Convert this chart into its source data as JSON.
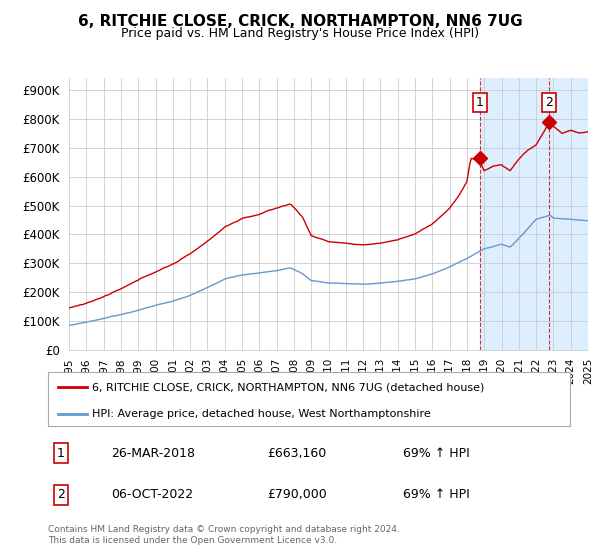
{
  "title": "6, RITCHIE CLOSE, CRICK, NORTHAMPTON, NN6 7UG",
  "subtitle": "Price paid vs. HM Land Registry's House Price Index (HPI)",
  "legend_line1": "6, RITCHIE CLOSE, CRICK, NORTHAMPTON, NN6 7UG (detached house)",
  "legend_line2": "HPI: Average price, detached house, West Northamptonshire",
  "footer": "Contains HM Land Registry data © Crown copyright and database right 2024.\nThis data is licensed under the Open Government Licence v3.0.",
  "transactions": [
    {
      "label": "1",
      "date": "26-MAR-2018",
      "price": 663160,
      "hpi_pct": "69% ↑ HPI",
      "x_year": 2018.75
    },
    {
      "label": "2",
      "date": "06-OCT-2022",
      "price": 790000,
      "hpi_pct": "69% ↑ HPI",
      "x_year": 2022.75
    }
  ],
  "ylim": [
    0,
    940000
  ],
  "yticks": [
    0,
    100000,
    200000,
    300000,
    400000,
    500000,
    600000,
    700000,
    800000,
    900000
  ],
  "ytick_labels": [
    "£0",
    "£100K",
    "£200K",
    "£300K",
    "£400K",
    "£500K",
    "£600K",
    "£700K",
    "£800K",
    "£900K"
  ],
  "red_color": "#cc0000",
  "blue_color": "#6699cc",
  "background_color": "#ffffff",
  "grid_color": "#cccccc",
  "highlight_bg": "#ddeeff",
  "x_start": 1995,
  "x_end": 2025,
  "xtick_years": [
    1995,
    1996,
    1997,
    1998,
    1999,
    2000,
    2001,
    2002,
    2003,
    2004,
    2005,
    2006,
    2007,
    2008,
    2009,
    2010,
    2011,
    2012,
    2013,
    2014,
    2015,
    2016,
    2017,
    2018,
    2019,
    2020,
    2021,
    2022,
    2023,
    2024,
    2025
  ],
  "highlight_start": 2018.75,
  "highlight_end": 2025,
  "tx1_marker_y": 663160,
  "tx2_marker_y": 790000
}
